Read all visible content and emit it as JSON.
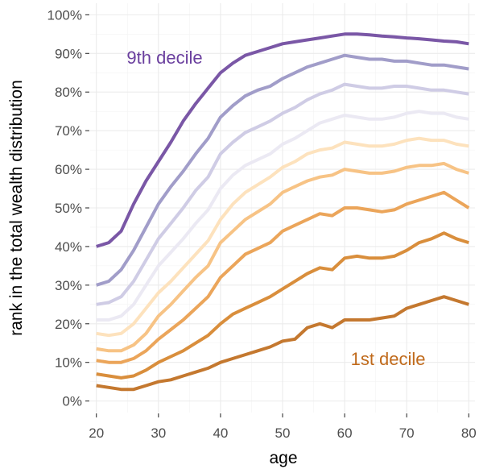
{
  "chart_data": {
    "type": "line",
    "title": "",
    "xlabel": "age",
    "ylabel": "rank in the total wealth distribution",
    "xlim": [
      19,
      81
    ],
    "ylim": [
      -3,
      103
    ],
    "x_ticks": [
      20,
      30,
      40,
      50,
      60,
      70,
      80
    ],
    "x_tick_labels": [
      "20",
      "30",
      "40",
      "50",
      "60",
      "70",
      "80"
    ],
    "y_ticks": [
      0,
      10,
      20,
      30,
      40,
      50,
      60,
      70,
      80,
      90,
      100
    ],
    "y_tick_labels": [
      "0%",
      "10%",
      "20%",
      "30%",
      "40%",
      "50%",
      "60%",
      "70%",
      "80%",
      "90%",
      "100%"
    ],
    "grid": true,
    "legend": "none",
    "x": [
      20,
      22,
      24,
      26,
      28,
      30,
      32,
      34,
      36,
      38,
      40,
      42,
      44,
      46,
      48,
      50,
      52,
      54,
      56,
      58,
      60,
      62,
      64,
      66,
      68,
      70,
      72,
      74,
      76,
      78,
      80
    ],
    "series": [
      {
        "color": "#c4782f",
        "values": [
          4,
          3.5,
          3,
          3,
          4,
          5,
          5.5,
          6.5,
          7.5,
          8.5,
          10,
          11,
          12,
          13,
          14,
          15.5,
          16,
          19,
          20,
          19,
          21,
          21,
          21,
          21.5,
          22,
          24,
          25,
          26,
          27,
          26,
          25
        ]
      },
      {
        "color": "#d98e3c",
        "values": [
          7,
          6.5,
          6,
          6.5,
          8,
          10,
          11.5,
          13,
          15,
          17,
          20,
          22.5,
          24,
          25.5,
          27,
          29,
          31,
          33,
          34.5,
          34,
          37,
          37.5,
          37,
          37,
          37.5,
          39,
          41,
          42,
          43.5,
          42,
          41
        ]
      },
      {
        "color": "#eba55a",
        "values": [
          10.5,
          10,
          10,
          11,
          13,
          16,
          18.5,
          21,
          24,
          27,
          32,
          35,
          38,
          39.5,
          41,
          44,
          45.5,
          47,
          48.5,
          48,
          50,
          50,
          49.5,
          49,
          49.5,
          51,
          52,
          53,
          54,
          52,
          50
        ]
      },
      {
        "color": "#f7c385",
        "values": [
          13.5,
          13,
          13,
          14.5,
          17.5,
          22,
          25,
          28.5,
          32,
          35,
          41,
          44,
          47,
          49,
          51,
          54,
          55.5,
          57,
          58,
          58.5,
          60,
          59.5,
          59,
          59,
          59.5,
          60.5,
          61,
          61,
          61.5,
          60,
          59
        ]
      },
      {
        "color": "#fde2bd",
        "values": [
          17.5,
          17,
          17.5,
          20,
          24,
          28,
          31,
          34.5,
          38,
          41.5,
          47,
          51,
          54,
          56,
          58,
          60.5,
          62,
          64,
          65,
          65.5,
          67,
          66.5,
          66,
          66,
          66.5,
          67.5,
          68,
          67.5,
          67.5,
          66.5,
          66
        ]
      },
      {
        "color": "#ebe9f3",
        "values": [
          21,
          21,
          22,
          25,
          30,
          35,
          38.5,
          42,
          46,
          49.5,
          55,
          58.5,
          61,
          62.5,
          64,
          66.5,
          68,
          70,
          72,
          73,
          74,
          73.5,
          73,
          73,
          73.5,
          74.5,
          75,
          74.5,
          74.5,
          73.5,
          73
        ]
      },
      {
        "color": "#cfccE5",
        "values": [
          25,
          25.5,
          27,
          31,
          36.5,
          42,
          46,
          50,
          54.5,
          58,
          64,
          67,
          69.5,
          71,
          72.5,
          74.5,
          76,
          78,
          79.5,
          80.5,
          82,
          81.5,
          81,
          81,
          81.5,
          81.5,
          81,
          80.5,
          80.5,
          80,
          79.5
        ]
      },
      {
        "color": "#a19dc9",
        "values": [
          30,
          31,
          34,
          39,
          45,
          51,
          55.5,
          59.5,
          64,
          68,
          73.5,
          76.5,
          79,
          80.5,
          81.5,
          83.5,
          85,
          86.5,
          87.5,
          88.5,
          89.5,
          89,
          88.5,
          88.5,
          88,
          88,
          87.5,
          87,
          87,
          86.5,
          86
        ]
      },
      {
        "color": "#7a57a6",
        "values": [
          40,
          41,
          44,
          51,
          57,
          62,
          67,
          72.5,
          77,
          81,
          85,
          87.5,
          89.5,
          90.5,
          91.5,
          92.5,
          93,
          93.5,
          94,
          94.5,
          95,
          95,
          94.8,
          94.5,
          94.3,
          94,
          93.8,
          93.5,
          93.2,
          93,
          92.5
        ]
      }
    ],
    "annotations": [
      {
        "text": "9th decile",
        "x": 31,
        "y": 89,
        "color": "#6a3f9e"
      },
      {
        "text": "1st decile",
        "x": 67,
        "y": 11,
        "color": "#c06a1b"
      }
    ]
  }
}
